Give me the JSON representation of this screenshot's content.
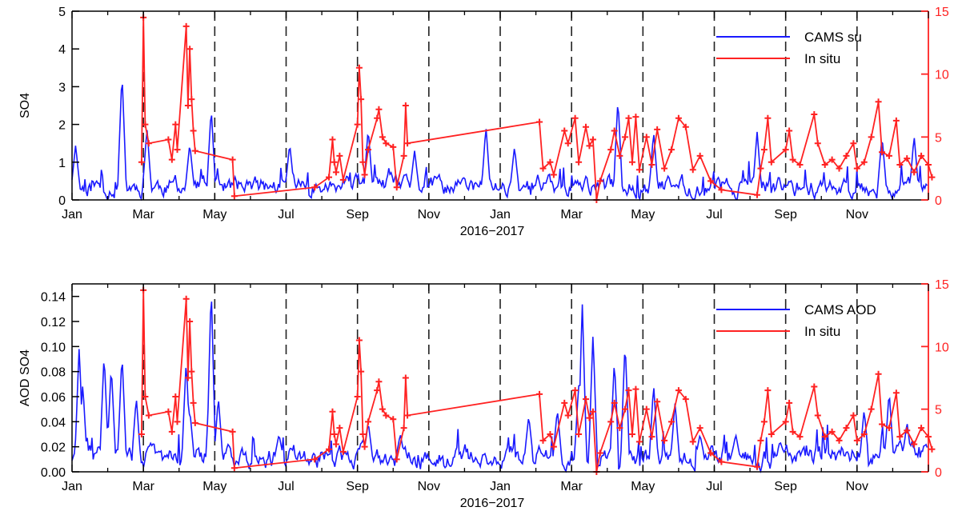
{
  "colors": {
    "model": "#1a1aff",
    "insitu": "#ff2222",
    "axis": "#000000",
    "right_axis": "#ff2222",
    "dashes": "#222222"
  },
  "chart_data": [
    {
      "type": "line",
      "xlabel": "2016−2017",
      "ylabel": "SO4",
      "x_tick_labels": [
        "Jan",
        "Mar",
        "May",
        "Jul",
        "Sep",
        "Nov",
        "Jan",
        "Mar",
        "May",
        "Jul",
        "Sep",
        "Nov"
      ],
      "ylim": [
        0,
        5
      ],
      "y_ticks": [
        0,
        1,
        2,
        3,
        4,
        5
      ],
      "y2lim": [
        0,
        15
      ],
      "y2_ticks": [
        0,
        5,
        10,
        15
      ],
      "grid": false,
      "legend_position": "top-right",
      "vertical_dashed_lines_at_months": [
        2,
        4,
        6,
        8,
        10,
        12,
        14,
        16,
        18,
        20,
        22
      ],
      "series": [
        {
          "name": "CAMS su",
          "axis": "left",
          "seed": 11,
          "base": 0.35,
          "noise": 0.35,
          "spikes": [
            [
              0.1,
              1.45
            ],
            [
              1.4,
              3.4
            ],
            [
              2.1,
              1.9
            ],
            [
              3.3,
              1.5
            ],
            [
              3.9,
              2.45
            ],
            [
              6.1,
              1.5
            ],
            [
              8.3,
              1.9
            ],
            [
              9.6,
              1.3
            ],
            [
              11.6,
              1.95
            ],
            [
              12.4,
              1.4
            ],
            [
              15.3,
              2.7
            ],
            [
              16.3,
              1.8
            ],
            [
              19.2,
              1.8
            ],
            [
              22.7,
              1.7
            ],
            [
              23.6,
              1.7
            ]
          ]
        },
        {
          "name": "In situ",
          "axis": "right",
          "points": [
            [
              1.95,
              3.0
            ],
            [
              2.0,
              14.5
            ],
            [
              2.05,
              6.0
            ],
            [
              2.15,
              4.5
            ],
            [
              2.7,
              4.8
            ],
            [
              2.8,
              3.2
            ],
            [
              2.9,
              6.0
            ],
            [
              2.95,
              4.0
            ],
            [
              3.2,
              13.8
            ],
            [
              3.25,
              7.5
            ],
            [
              3.3,
              12.0
            ],
            [
              3.35,
              8.0
            ],
            [
              3.4,
              5.5
            ],
            [
              3.45,
              3.9
            ],
            [
              4.5,
              3.2
            ],
            [
              4.55,
              0.3
            ],
            [
              6.8,
              1.0
            ],
            [
              7.2,
              1.8
            ],
            [
              7.3,
              4.8
            ],
            [
              7.35,
              3.0
            ],
            [
              7.4,
              2.2
            ],
            [
              7.5,
              3.5
            ],
            [
              7.6,
              1.6
            ],
            [
              8.0,
              6.0
            ],
            [
              8.05,
              10.5
            ],
            [
              8.1,
              8.0
            ],
            [
              8.15,
              3.0
            ],
            [
              8.2,
              2.0
            ],
            [
              8.3,
              4.0
            ],
            [
              8.55,
              6.5
            ],
            [
              8.6,
              7.2
            ],
            [
              8.7,
              5.0
            ],
            [
              8.8,
              4.5
            ],
            [
              9.0,
              4.2
            ],
            [
              9.1,
              1.0
            ],
            [
              9.3,
              3.5
            ],
            [
              9.35,
              7.5
            ],
            [
              9.4,
              4.5
            ],
            [
              13.1,
              6.2
            ],
            [
              13.2,
              2.5
            ],
            [
              13.4,
              3.0
            ],
            [
              13.5,
              2.0
            ],
            [
              13.8,
              5.5
            ],
            [
              13.9,
              4.5
            ],
            [
              14.1,
              6.5
            ],
            [
              14.2,
              3.0
            ],
            [
              14.4,
              5.8
            ],
            [
              14.5,
              4.3
            ],
            [
              14.6,
              4.8
            ],
            [
              14.7,
              0.0
            ],
            [
              14.8,
              1.5
            ],
            [
              15.1,
              4.0
            ],
            [
              15.2,
              5.5
            ],
            [
              15.35,
              3.5
            ],
            [
              15.5,
              5.0
            ],
            [
              15.6,
              6.5
            ],
            [
              15.7,
              3.0
            ],
            [
              15.8,
              6.6
            ],
            [
              15.9,
              2.4
            ],
            [
              16.1,
              5.0
            ],
            [
              16.25,
              2.8
            ],
            [
              16.4,
              5.6
            ],
            [
              16.6,
              2.5
            ],
            [
              16.8,
              4.0
            ],
            [
              17.0,
              6.5
            ],
            [
              17.2,
              5.8
            ],
            [
              17.4,
              2.4
            ],
            [
              17.6,
              3.5
            ],
            [
              17.9,
              1.5
            ],
            [
              18.2,
              0.8
            ],
            [
              19.2,
              0.4
            ],
            [
              19.3,
              2.5
            ],
            [
              19.4,
              4.0
            ],
            [
              19.5,
              6.5
            ],
            [
              19.6,
              3.0
            ],
            [
              20.0,
              4.0
            ],
            [
              20.1,
              5.5
            ],
            [
              20.2,
              3.2
            ],
            [
              20.4,
              2.8
            ],
            [
              20.8,
              6.8
            ],
            [
              20.9,
              4.5
            ],
            [
              21.1,
              2.8
            ],
            [
              21.3,
              3.2
            ],
            [
              21.5,
              2.5
            ],
            [
              21.7,
              3.5
            ],
            [
              21.9,
              4.5
            ],
            [
              22.0,
              2.5
            ],
            [
              22.2,
              3.0
            ],
            [
              22.4,
              5.0
            ],
            [
              22.6,
              7.8
            ],
            [
              22.7,
              3.8
            ],
            [
              22.9,
              3.5
            ],
            [
              23.1,
              6.3
            ],
            [
              23.2,
              2.8
            ],
            [
              23.4,
              3.3
            ],
            [
              23.6,
              2.2
            ],
            [
              23.8,
              3.5
            ],
            [
              24.0,
              2.8
            ],
            [
              24.1,
              1.8
            ]
          ]
        }
      ]
    },
    {
      "type": "line",
      "xlabel": "2016−2017",
      "ylabel": "AOD SO4",
      "x_tick_labels": [
        "Jan",
        "Mar",
        "May",
        "Jul",
        "Sep",
        "Nov",
        "Jan",
        "Mar",
        "May",
        "Jul",
        "Sep",
        "Nov"
      ],
      "ylim": [
        0,
        0.15
      ],
      "y_ticks": [
        0.0,
        0.02,
        0.04,
        0.06,
        0.08,
        0.1,
        0.12,
        0.14
      ],
      "y_tick_labels": [
        "0.00",
        "0.02",
        "0.04",
        "0.06",
        "0.08",
        "0.10",
        "0.12",
        "0.14"
      ],
      "y2lim": [
        0,
        15
      ],
      "y2_ticks": [
        0,
        5,
        10,
        15
      ],
      "grid": false,
      "legend_position": "top-right",
      "vertical_dashed_lines_at_months": [
        2,
        4,
        6,
        8,
        10,
        12,
        14,
        16,
        18,
        20,
        22
      ],
      "series": [
        {
          "name": "CAMS AOD",
          "axis": "left",
          "seed": 29,
          "base": 0.012,
          "noise": 0.012,
          "spikes": [
            [
              0.2,
              0.1
            ],
            [
              0.3,
              0.07
            ],
            [
              0.9,
              0.095
            ],
            [
              1.1,
              0.085
            ],
            [
              1.4,
              0.095
            ],
            [
              1.8,
              0.06
            ],
            [
              3.2,
              0.09
            ],
            [
              3.3,
              0.05
            ],
            [
              3.9,
              0.15
            ],
            [
              4.1,
              0.06
            ],
            [
              5.8,
              0.03
            ],
            [
              8.3,
              0.04
            ],
            [
              9.2,
              0.03
            ],
            [
              12.8,
              0.045
            ],
            [
              13.6,
              0.05
            ],
            [
              14.2,
              0.07
            ],
            [
              14.3,
              0.135
            ],
            [
              14.6,
              0.11
            ],
            [
              15.2,
              0.09
            ],
            [
              15.5,
              0.105
            ],
            [
              16.3,
              0.07
            ],
            [
              16.9,
              0.055
            ],
            [
              17.6,
              0.03
            ],
            [
              18.6,
              0.03
            ],
            [
              22.2,
              0.05
            ],
            [
              22.9,
              0.065
            ],
            [
              23.4,
              0.04
            ]
          ]
        },
        {
          "name": "In situ",
          "axis": "right",
          "points": [
            [
              1.95,
              3.0
            ],
            [
              2.0,
              14.5
            ],
            [
              2.05,
              6.0
            ],
            [
              2.15,
              4.5
            ],
            [
              2.7,
              4.8
            ],
            [
              2.8,
              3.2
            ],
            [
              2.9,
              6.0
            ],
            [
              2.95,
              4.0
            ],
            [
              3.2,
              13.8
            ],
            [
              3.25,
              7.5
            ],
            [
              3.3,
              12.0
            ],
            [
              3.35,
              8.0
            ],
            [
              3.4,
              5.5
            ],
            [
              3.45,
              3.9
            ],
            [
              4.5,
              3.2
            ],
            [
              4.55,
              0.3
            ],
            [
              6.8,
              1.0
            ],
            [
              7.2,
              1.8
            ],
            [
              7.3,
              4.8
            ],
            [
              7.35,
              3.0
            ],
            [
              7.4,
              2.2
            ],
            [
              7.5,
              3.5
            ],
            [
              7.6,
              1.6
            ],
            [
              8.0,
              6.0
            ],
            [
              8.05,
              10.5
            ],
            [
              8.1,
              8.0
            ],
            [
              8.15,
              3.0
            ],
            [
              8.2,
              2.0
            ],
            [
              8.3,
              4.0
            ],
            [
              8.55,
              6.5
            ],
            [
              8.6,
              7.2
            ],
            [
              8.7,
              5.0
            ],
            [
              8.8,
              4.5
            ],
            [
              9.0,
              4.2
            ],
            [
              9.1,
              1.0
            ],
            [
              9.3,
              3.5
            ],
            [
              9.35,
              7.5
            ],
            [
              9.4,
              4.5
            ],
            [
              13.1,
              6.2
            ],
            [
              13.2,
              2.5
            ],
            [
              13.4,
              3.0
            ],
            [
              13.5,
              2.0
            ],
            [
              13.8,
              5.5
            ],
            [
              13.9,
              4.5
            ],
            [
              14.1,
              6.5
            ],
            [
              14.2,
              3.0
            ],
            [
              14.4,
              5.8
            ],
            [
              14.5,
              4.3
            ],
            [
              14.6,
              4.8
            ],
            [
              14.7,
              0.0
            ],
            [
              14.8,
              1.5
            ],
            [
              15.1,
              4.0
            ],
            [
              15.2,
              5.5
            ],
            [
              15.35,
              3.5
            ],
            [
              15.5,
              5.0
            ],
            [
              15.6,
              6.5
            ],
            [
              15.7,
              3.0
            ],
            [
              15.8,
              6.6
            ],
            [
              15.9,
              2.4
            ],
            [
              16.1,
              5.0
            ],
            [
              16.25,
              2.8
            ],
            [
              16.4,
              5.6
            ],
            [
              16.6,
              2.5
            ],
            [
              16.8,
              4.0
            ],
            [
              17.0,
              6.5
            ],
            [
              17.2,
              5.8
            ],
            [
              17.4,
              2.4
            ],
            [
              17.6,
              3.5
            ],
            [
              17.9,
              1.5
            ],
            [
              18.2,
              0.8
            ],
            [
              19.2,
              0.4
            ],
            [
              19.3,
              2.5
            ],
            [
              19.4,
              4.0
            ],
            [
              19.5,
              6.5
            ],
            [
              19.6,
              3.0
            ],
            [
              20.0,
              4.0
            ],
            [
              20.1,
              5.5
            ],
            [
              20.2,
              3.2
            ],
            [
              20.4,
              2.8
            ],
            [
              20.8,
              6.8
            ],
            [
              20.9,
              4.5
            ],
            [
              21.1,
              2.8
            ],
            [
              21.3,
              3.2
            ],
            [
              21.5,
              2.5
            ],
            [
              21.7,
              3.5
            ],
            [
              21.9,
              4.5
            ],
            [
              22.0,
              2.5
            ],
            [
              22.2,
              3.0
            ],
            [
              22.4,
              5.0
            ],
            [
              22.6,
              7.8
            ],
            [
              22.7,
              3.8
            ],
            [
              22.9,
              3.5
            ],
            [
              23.1,
              6.3
            ],
            [
              23.2,
              2.8
            ],
            [
              23.4,
              3.3
            ],
            [
              23.6,
              2.2
            ],
            [
              23.8,
              3.5
            ],
            [
              24.0,
              2.8
            ],
            [
              24.1,
              1.8
            ]
          ]
        }
      ]
    }
  ]
}
